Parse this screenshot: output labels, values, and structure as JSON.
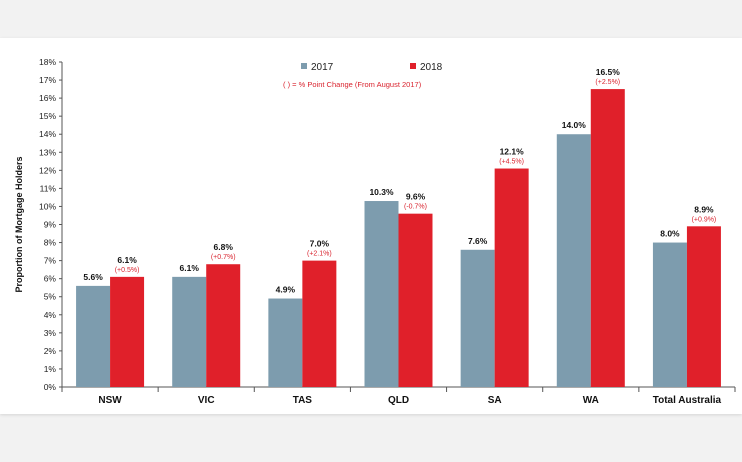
{
  "chart_data": {
    "type": "bar",
    "categories": [
      "NSW",
      "VIC",
      "TAS",
      "QLD",
      "SA",
      "WA",
      "Total Australia"
    ],
    "series": [
      {
        "name": "2017",
        "color": "#7d9cae",
        "values": [
          5.6,
          6.1,
          4.9,
          10.3,
          7.6,
          14.0,
          8.0
        ],
        "labels": [
          "5.6%",
          "6.1%",
          "4.9%",
          "10.3%",
          "7.6%",
          "14.0%",
          "8.0%"
        ]
      },
      {
        "name": "2018",
        "color": "#e0202a",
        "values": [
          6.1,
          6.8,
          7.0,
          9.6,
          12.1,
          16.5,
          8.9
        ],
        "labels": [
          "6.1%",
          "6.8%",
          "7.0%",
          "9.6%",
          "12.1%",
          "16.5%",
          "8.9%"
        ],
        "changes": [
          "(+0.5%)",
          "(+0.7%)",
          "(+2.1%)",
          "(-0.7%)",
          "(+4.5%)",
          "(+2.5%)",
          "(+0.9%)"
        ]
      }
    ],
    "ylabel": "Proportion of Mortgage Holders",
    "xlabel": "",
    "ylim": [
      0,
      18
    ],
    "yticks": [
      "0%",
      "1%",
      "2%",
      "3%",
      "4%",
      "5%",
      "6%",
      "7%",
      "8%",
      "9%",
      "10%",
      "11%",
      "12%",
      "13%",
      "14%",
      "15%",
      "16%",
      "17%",
      "18%"
    ],
    "note": "( ) = % Point Change (From August 2017)",
    "legend_position": "top",
    "grid": false
  }
}
